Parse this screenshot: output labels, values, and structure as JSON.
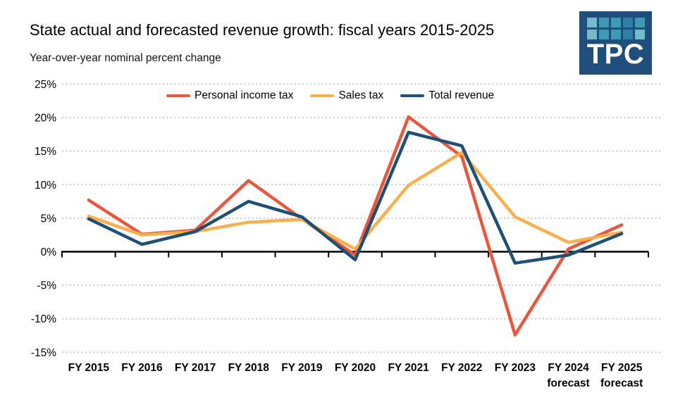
{
  "chart_data": {
    "type": "line",
    "title": "State actual and forecasted revenue growth: fiscal years 2015-2025",
    "subtitle": "Year-over-year nominal percent change",
    "categories": [
      "FY 2015",
      "FY 2016",
      "FY 2017",
      "FY 2018",
      "FY 2019",
      "FY 2020",
      "FY 2021",
      "FY 2022",
      "FY 2023",
      "FY 2024",
      "FY 2025"
    ],
    "category_sublabels": [
      "",
      "",
      "",
      "",
      "",
      "",
      "",
      "",
      "",
      "forecast",
      "forecast"
    ],
    "series": [
      {
        "name": "Personal income tax",
        "color": "#E8573C",
        "values": [
          7.7,
          2.6,
          3.2,
          10.6,
          4.9,
          -0.5,
          20.1,
          14.2,
          -12.4,
          0.4,
          4.0
        ]
      },
      {
        "name": "Sales tax",
        "color": "#F9B04C",
        "values": [
          5.3,
          2.5,
          3.0,
          4.4,
          4.8,
          0.4,
          9.9,
          14.8,
          5.2,
          1.4,
          2.9
        ]
      },
      {
        "name": "Total revenue",
        "color": "#1E4F76",
        "values": [
          4.9,
          1.1,
          3.0,
          7.5,
          5.2,
          -1.2,
          17.8,
          15.8,
          -1.7,
          -0.5,
          2.7
        ]
      }
    ],
    "ylim": [
      -15,
      25
    ],
    "ytick_step": 5,
    "ytick_labels": [
      "25%",
      "20%",
      "15%",
      "10%",
      "5%",
      "0%",
      "-5%",
      "-10%",
      "-15%"
    ],
    "grid": "dotted-horizontal",
    "legend_position": "top-center",
    "axis_color": "#000000",
    "gridline_color": "#C9C9C9"
  },
  "logo": {
    "text": "TPC",
    "bg_color": "#1F4E7C",
    "square_colors": {
      "light": "#74BACD",
      "med": "#3D9AB5",
      "dark": "#2C80A5"
    },
    "grid_pattern": [
      [
        "light",
        "med",
        "med",
        "dark",
        "med"
      ],
      [
        "light",
        "med",
        "med",
        "dark",
        "light"
      ]
    ]
  }
}
